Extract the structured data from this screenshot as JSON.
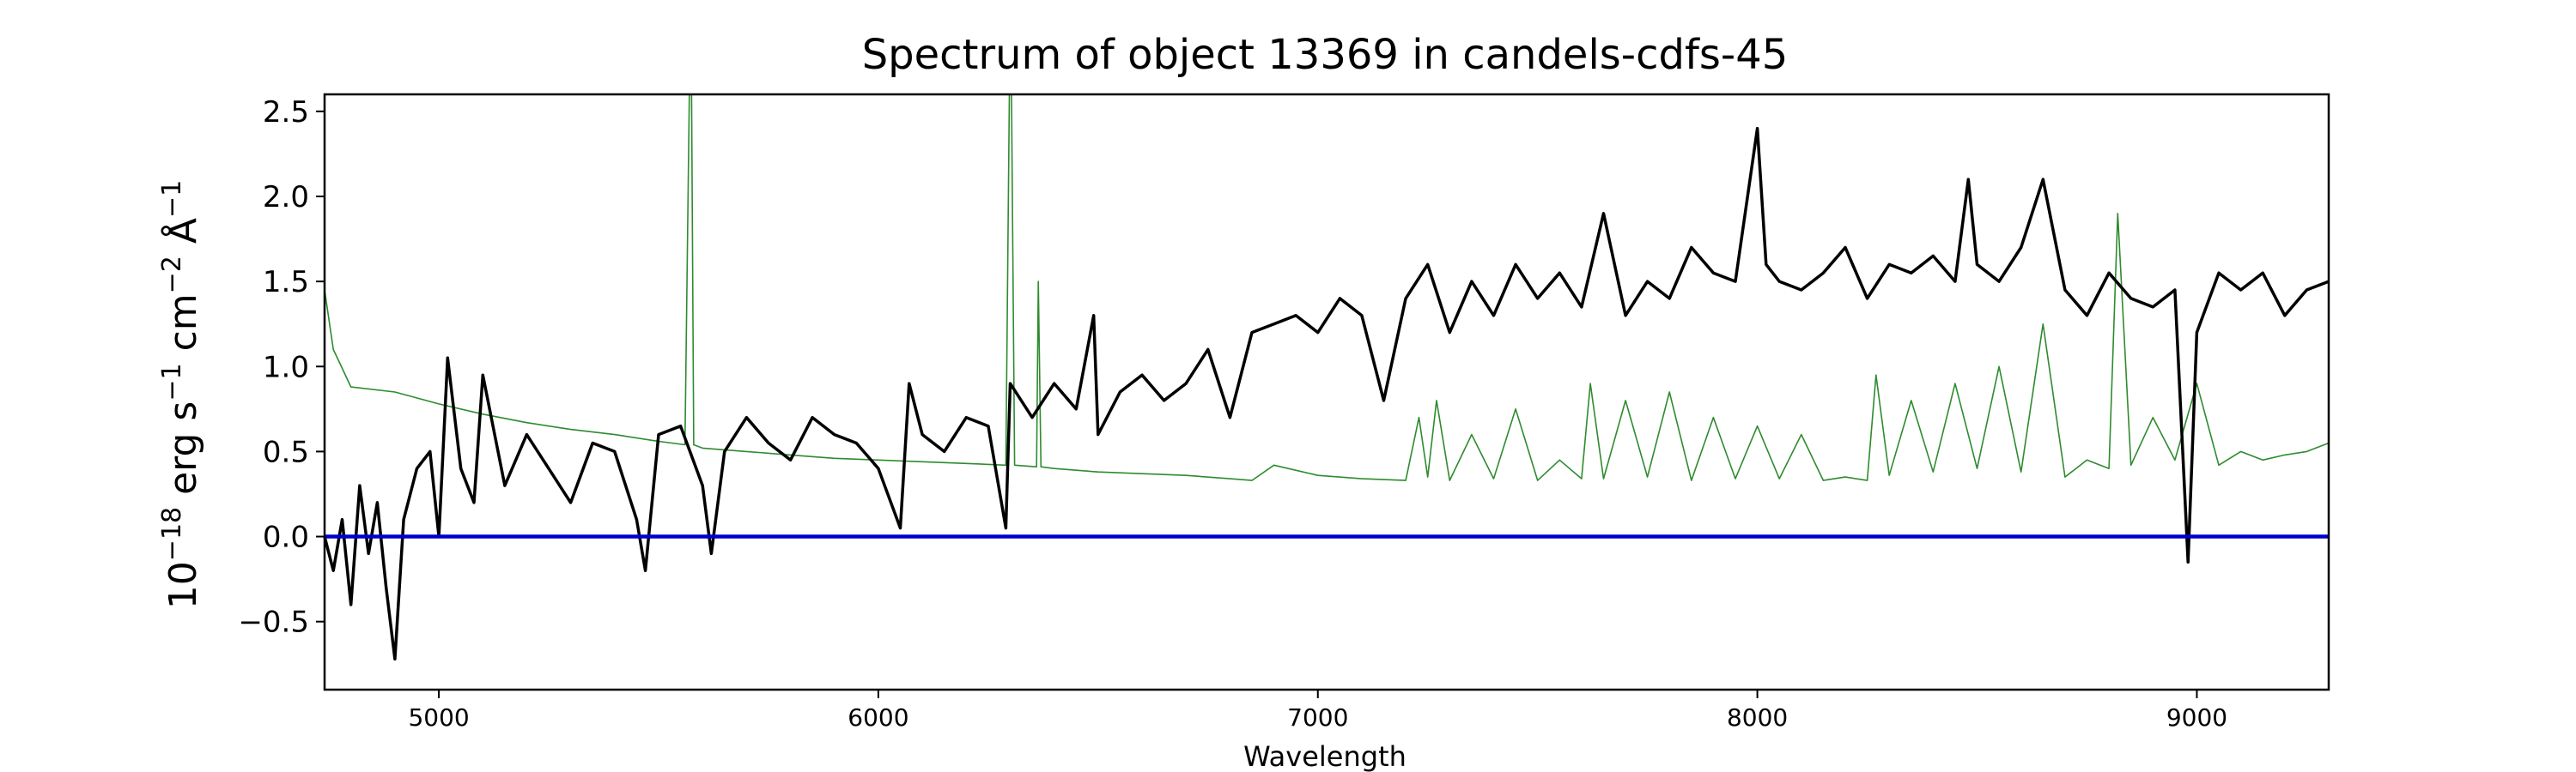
{
  "chart_data": {
    "type": "line",
    "title": "Spectrum of object 13369 in candels-cdfs-45",
    "xlabel": "Wavelength",
    "ylabel": {
      "base": "10",
      "exp1": "−18",
      "erg": " erg s",
      "exp2": "−1",
      "cm": " cm",
      "exp3": "−2",
      "ang": " Å",
      "exp4": "−1"
    },
    "xlim": [
      4740,
      9300
    ],
    "ylim": [
      -0.9,
      2.6
    ],
    "xticks": [
      5000,
      6000,
      7000,
      8000,
      9000
    ],
    "xtick_labels": [
      "5000",
      "6000",
      "7000",
      "8000",
      "9000"
    ],
    "yticks": [
      -0.5,
      0.0,
      0.5,
      1.0,
      1.5,
      2.0,
      2.5
    ],
    "ytick_labels": [
      "−0.5",
      "0.0",
      "0.5",
      "1.0",
      "1.5",
      "2.0",
      "2.5"
    ],
    "grid": false,
    "colors": {
      "flux": "#000000",
      "error": "#2e8b2e",
      "zero": "#0000cc"
    },
    "series": [
      {
        "role": "flux",
        "x": [
          4740,
          4760,
          4780,
          4800,
          4820,
          4840,
          4860,
          4880,
          4900,
          4920,
          4950,
          4980,
          5000,
          5020,
          5050,
          5080,
          5100,
          5150,
          5200,
          5250,
          5300,
          5350,
          5400,
          5450,
          5470,
          5500,
          5550,
          5600,
          5620,
          5650,
          5700,
          5750,
          5800,
          5850,
          5900,
          5950,
          6000,
          6050,
          6070,
          6100,
          6150,
          6200,
          6250,
          6290,
          6300,
          6350,
          6400,
          6450,
          6490,
          6500,
          6550,
          6600,
          6650,
          6700,
          6750,
          6800,
          6850,
          6900,
          6950,
          7000,
          7050,
          7100,
          7150,
          7200,
          7250,
          7300,
          7350,
          7400,
          7450,
          7500,
          7550,
          7600,
          7650,
          7700,
          7750,
          7800,
          7850,
          7900,
          7950,
          8000,
          8020,
          8050,
          8100,
          8150,
          8200,
          8250,
          8300,
          8350,
          8400,
          8450,
          8480,
          8500,
          8550,
          8600,
          8650,
          8700,
          8750,
          8800,
          8850,
          8900,
          8950,
          8980,
          9000,
          9050,
          9100,
          9150,
          9200,
          9250,
          9300
        ],
        "y": [
          0.0,
          -0.2,
          0.1,
          -0.4,
          0.3,
          -0.1,
          0.2,
          -0.3,
          -0.72,
          0.1,
          0.4,
          0.5,
          0.0,
          1.05,
          0.4,
          0.2,
          0.95,
          0.3,
          0.6,
          0.4,
          0.2,
          0.55,
          0.5,
          0.1,
          -0.2,
          0.6,
          0.65,
          0.3,
          -0.1,
          0.5,
          0.7,
          0.55,
          0.45,
          0.7,
          0.6,
          0.55,
          0.4,
          0.05,
          0.9,
          0.6,
          0.5,
          0.7,
          0.65,
          0.05,
          0.9,
          0.7,
          0.9,
          0.75,
          1.3,
          0.6,
          0.85,
          0.95,
          0.8,
          0.9,
          1.1,
          0.7,
          1.2,
          1.25,
          1.3,
          1.2,
          1.4,
          1.3,
          0.8,
          1.4,
          1.6,
          1.2,
          1.5,
          1.3,
          1.6,
          1.4,
          1.55,
          1.35,
          1.9,
          1.3,
          1.5,
          1.4,
          1.7,
          1.55,
          1.5,
          2.4,
          1.6,
          1.5,
          1.45,
          1.55,
          1.7,
          1.4,
          1.6,
          1.55,
          1.65,
          1.5,
          2.1,
          1.6,
          1.5,
          1.7,
          2.1,
          1.45,
          1.3,
          1.55,
          1.4,
          1.35,
          1.45,
          -0.15,
          1.2,
          1.55,
          1.45,
          1.55,
          1.3,
          1.45,
          1.5
        ]
      },
      {
        "role": "error",
        "x": [
          4740,
          4760,
          4800,
          4900,
          5000,
          5100,
          5200,
          5300,
          5400,
          5500,
          5560,
          5570,
          5575,
          5580,
          5600,
          5700,
          5800,
          5900,
          6000,
          6100,
          6200,
          6290,
          6298,
          6303,
          6310,
          6360,
          6364,
          6370,
          6400,
          6500,
          6600,
          6700,
          6800,
          6850,
          6900,
          7000,
          7100,
          7200,
          7230,
          7250,
          7270,
          7300,
          7350,
          7400,
          7450,
          7500,
          7550,
          7600,
          7620,
          7650,
          7700,
          7750,
          7800,
          7850,
          7900,
          7950,
          8000,
          8050,
          8100,
          8150,
          8200,
          8250,
          8270,
          8300,
          8350,
          8400,
          8450,
          8500,
          8550,
          8600,
          8650,
          8700,
          8750,
          8800,
          8820,
          8850,
          8900,
          8950,
          9000,
          9050,
          9100,
          9150,
          9200,
          9250,
          9300
        ],
        "y": [
          1.45,
          1.1,
          0.88,
          0.85,
          0.78,
          0.72,
          0.67,
          0.63,
          0.6,
          0.56,
          0.54,
          2.6,
          2.6,
          0.54,
          0.52,
          0.5,
          0.48,
          0.46,
          0.45,
          0.44,
          0.43,
          0.42,
          2.6,
          2.6,
          0.42,
          0.41,
          1.5,
          0.41,
          0.4,
          0.38,
          0.37,
          0.36,
          0.34,
          0.33,
          0.42,
          0.36,
          0.34,
          0.33,
          0.7,
          0.35,
          0.8,
          0.33,
          0.6,
          0.34,
          0.75,
          0.33,
          0.45,
          0.34,
          0.9,
          0.34,
          0.8,
          0.35,
          0.85,
          0.33,
          0.7,
          0.34,
          0.65,
          0.34,
          0.6,
          0.33,
          0.35,
          0.33,
          0.95,
          0.36,
          0.8,
          0.38,
          0.9,
          0.4,
          1.0,
          0.38,
          1.25,
          0.35,
          0.45,
          0.4,
          1.9,
          0.42,
          0.7,
          0.45,
          0.9,
          0.42,
          0.5,
          0.45,
          0.48,
          0.5,
          0.55
        ]
      },
      {
        "role": "zero",
        "x": [
          4740,
          9300
        ],
        "y": [
          0.0,
          0.0
        ]
      }
    ]
  }
}
